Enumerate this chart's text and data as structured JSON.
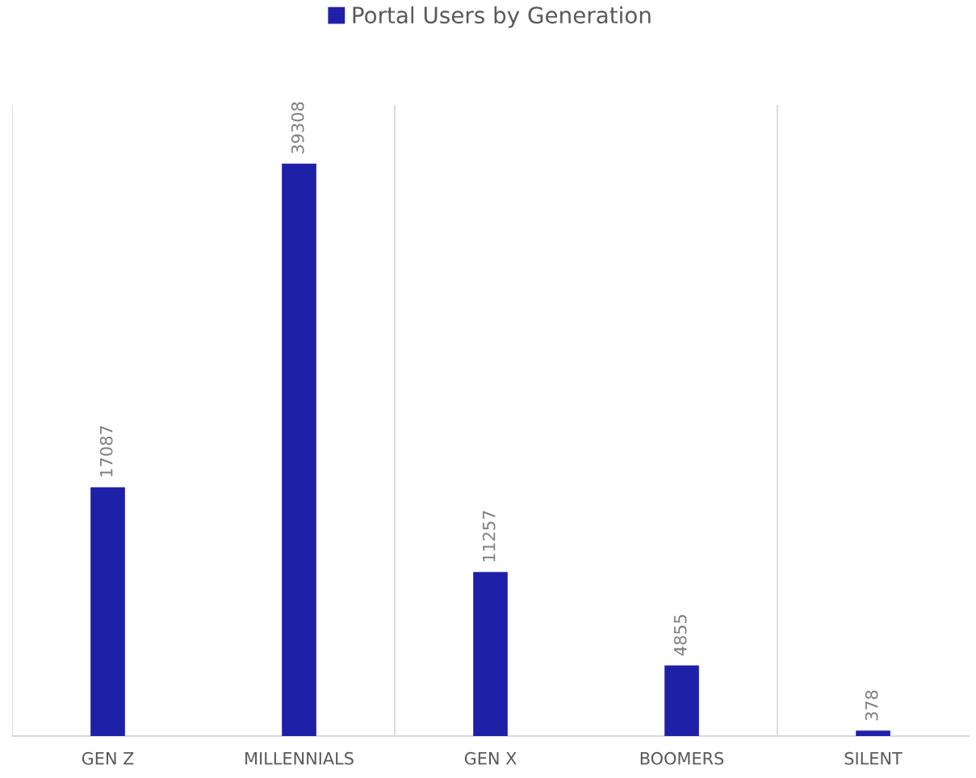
{
  "chart_data": {
    "type": "bar",
    "categories": [
      "GEN Z",
      "MILLENNIALS",
      "GEN X",
      "BOOMERS",
      "SILENT"
    ],
    "series": [
      {
        "name": "Portal Users by Generation",
        "color": "#1f20a8",
        "values": [
          17087,
          39308,
          11257,
          4855,
          378
        ]
      }
    ],
    "data_labels": true,
    "grid": "x",
    "legend": "top",
    "tick_labels": "x"
  }
}
